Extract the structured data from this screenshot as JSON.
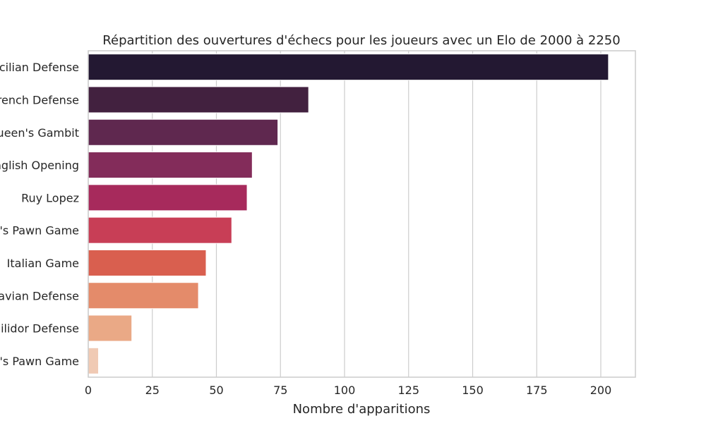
{
  "chart_data": {
    "type": "bar",
    "orientation": "horizontal",
    "title": "Répartition des ouvertures d'échecs pour les joueurs avec un Elo de 2000 à 2250",
    "xlabel": "Nombre d'apparitions",
    "ylabel": "",
    "categories": [
      "Sicilian Defense",
      "French Defense",
      "Queen's Gambit",
      "English Opening",
      "Ruy Lopez",
      "Queen's Pawn Game",
      "Italian Game",
      "Scandinavian Defense",
      "Philidor Defense",
      "King's Pawn Game"
    ],
    "values": [
      203,
      86,
      74,
      64,
      62,
      56,
      46,
      43,
      17,
      4
    ],
    "xlim": [
      0,
      213.5
    ],
    "xticks": [
      0,
      25,
      50,
      75,
      100,
      125,
      150,
      175,
      200
    ],
    "grid": true,
    "colors": [
      "#231832",
      "#42213f",
      "#5f284f",
      "#832c5a",
      "#a72a5c",
      "#c83e56",
      "#d95f4f",
      "#e48b6a",
      "#eaa986",
      "#f0cab4"
    ],
    "edge_color": "#ffffff"
  }
}
